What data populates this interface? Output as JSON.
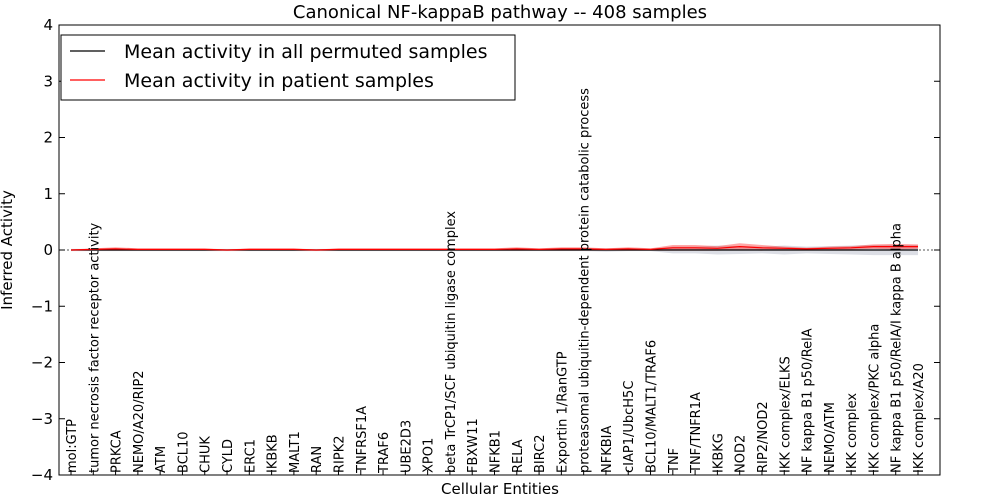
{
  "chart_data": {
    "type": "line",
    "title": "Canonical NF-kappaB pathway -- 408 samples",
    "xlabel": "Cellular Entities",
    "ylabel": "Inferred Activity",
    "ylim": [
      -4,
      4
    ],
    "yticks": [
      "−4",
      "−3",
      "−2",
      "−1",
      "0",
      "1",
      "2",
      "3",
      "4"
    ],
    "grid": false,
    "legend_position": "top-left",
    "categories": [
      "mol:GTP",
      "tumor necrosis factor receptor activity",
      "PRKCA",
      "NEMO/A20/RIP2",
      "ATM",
      "BCL10",
      "CHUK",
      "CYLD",
      "ERC1",
      "IKBKB",
      "MALT1",
      "RAN",
      "RIPK2",
      "TNFRSF1A",
      "TRAF6",
      "UBE2D3",
      "XPO1",
      "beta TrCP1/SCF ubiquitin ligase complex",
      "FBXW11",
      "NFKB1",
      "RELA",
      "BIRC2",
      "Exportin 1/RanGTP",
      "proteasomal ubiquitin-dependent protein catabolic process",
      "NFKBIA",
      "cIAP1/UbcH5C",
      "BCL10/MALT1/TRAF6",
      "TNF",
      "TNF/TNFR1A",
      "IKBKG",
      "NOD2",
      "RIP2/NOD2",
      "IKK complex/ELKS",
      "NF kappa B1 p50/RelA",
      "NEMO/ATM",
      "IKK complex",
      "IKK complex/PKC alpha",
      "NF kappa B1 p50/RelA/I kappa B alpha",
      "IKK complex/A20"
    ],
    "series": [
      {
        "name": "Mean activity in all permuted samples",
        "color": "#000000",
        "values": [
          0,
          0,
          0,
          0,
          0,
          0,
          0,
          0,
          0,
          0,
          0,
          0,
          0,
          0,
          0,
          0,
          0,
          0,
          0,
          0,
          0,
          0,
          0,
          0,
          0,
          0,
          0,
          0,
          0,
          0,
          0,
          0,
          0,
          0,
          0,
          0,
          0,
          0,
          0
        ]
      },
      {
        "name": "Mean activity in patient samples",
        "color": "#ff0000",
        "values": [
          0.0,
          0.01,
          0.02,
          0.01,
          0.01,
          0.01,
          0.01,
          0.0,
          0.01,
          0.01,
          0.01,
          0.0,
          0.01,
          0.01,
          0.01,
          0.01,
          0.01,
          0.01,
          0.01,
          0.01,
          0.02,
          0.01,
          0.02,
          0.02,
          0.01,
          0.02,
          0.01,
          0.04,
          0.04,
          0.03,
          0.06,
          0.04,
          0.03,
          0.02,
          0.03,
          0.04,
          0.06,
          0.06,
          0.06
        ]
      }
    ],
    "permuted_band_halfwidth": [
      0.02,
      0.02,
      0.02,
      0.02,
      0.02,
      0.02,
      0.02,
      0.02,
      0.02,
      0.02,
      0.02,
      0.02,
      0.02,
      0.02,
      0.02,
      0.02,
      0.02,
      0.02,
      0.02,
      0.02,
      0.02,
      0.02,
      0.02,
      0.02,
      0.03,
      0.02,
      0.02,
      0.06,
      0.06,
      0.08,
      0.07,
      0.06,
      0.08,
      0.06,
      0.07,
      0.08,
      0.09,
      0.09,
      0.09
    ],
    "patient_band_halfwidth": [
      0.01,
      0.02,
      0.03,
      0.02,
      0.02,
      0.02,
      0.02,
      0.01,
      0.02,
      0.02,
      0.02,
      0.01,
      0.02,
      0.02,
      0.02,
      0.02,
      0.02,
      0.02,
      0.02,
      0.02,
      0.03,
      0.02,
      0.03,
      0.03,
      0.02,
      0.03,
      0.02,
      0.05,
      0.05,
      0.04,
      0.06,
      0.05,
      0.03,
      0.02,
      0.03,
      0.03,
      0.04,
      0.05,
      0.04
    ]
  }
}
